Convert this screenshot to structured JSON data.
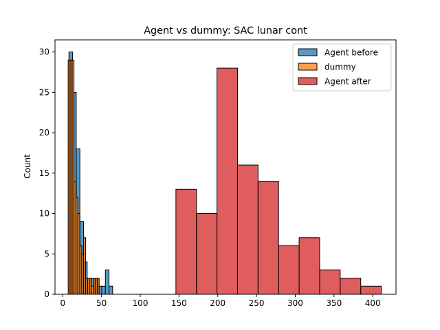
{
  "chart_data": {
    "type": "bar",
    "title": "Agent vs dummy: SAC lunar cont",
    "xlabel": "",
    "ylabel": "Count",
    "xlim": [
      -10,
      430
    ],
    "ylim": [
      0,
      31.5
    ],
    "xticks": [
      0,
      50,
      100,
      150,
      200,
      250,
      300,
      350,
      400
    ],
    "yticks": [
      0,
      5,
      10,
      15,
      20,
      25,
      30
    ],
    "legend_position": "top-right",
    "grid": false,
    "series": [
      {
        "name": "Agent before",
        "color": "#1f77b4",
        "bins": [
          {
            "x0": 8.0,
            "x1": 12.7,
            "count": 30
          },
          {
            "x0": 12.7,
            "x1": 17.4,
            "count": 25
          },
          {
            "x0": 17.4,
            "x1": 22.1,
            "count": 18
          },
          {
            "x0": 22.1,
            "x1": 26.8,
            "count": 9
          },
          {
            "x0": 26.8,
            "x1": 31.5,
            "count": 4
          },
          {
            "x0": 31.5,
            "x1": 36.2,
            "count": 2
          },
          {
            "x0": 36.2,
            "x1": 40.9,
            "count": 2
          },
          {
            "x0": 40.9,
            "x1": 45.6,
            "count": 2
          },
          {
            "x0": 45.6,
            "x1": 50.3,
            "count": 1
          },
          {
            "x0": 50.3,
            "x1": 55.0,
            "count": 1
          },
          {
            "x0": 55.0,
            "x1": 59.7,
            "count": 3
          },
          {
            "x0": 59.7,
            "x1": 64.4,
            "count": 1
          }
        ]
      },
      {
        "name": "dummy",
        "color": "#ff7f0e",
        "bins": [
          {
            "x0": 7.0,
            "x1": 9.5,
            "count": 29
          },
          {
            "x0": 9.5,
            "x1": 12.0,
            "count": 29
          },
          {
            "x0": 12.0,
            "x1": 14.5,
            "count": 29
          },
          {
            "x0": 14.5,
            "x1": 17.0,
            "count": 14
          },
          {
            "x0": 17.0,
            "x1": 19.5,
            "count": 12
          },
          {
            "x0": 19.5,
            "x1": 22.0,
            "count": 10
          },
          {
            "x0": 22.0,
            "x1": 24.5,
            "count": 6
          },
          {
            "x0": 24.5,
            "x1": 27.0,
            "count": 5
          },
          {
            "x0": 27.0,
            "x1": 29.5,
            "count": 7
          },
          {
            "x0": 29.5,
            "x1": 32.0,
            "count": 2
          },
          {
            "x0": 32.0,
            "x1": 34.5,
            "count": 2
          },
          {
            "x0": 34.5,
            "x1": 37.0,
            "count": 2
          },
          {
            "x0": 37.0,
            "x1": 39.5,
            "count": 1
          },
          {
            "x0": 39.5,
            "x1": 42.0,
            "count": 2
          },
          {
            "x0": 42.0,
            "x1": 44.5,
            "count": 2
          },
          {
            "x0": 44.5,
            "x1": 47.0,
            "count": 2
          }
        ]
      },
      {
        "name": "Agent after",
        "color": "#d62728",
        "bins": [
          {
            "x0": 146.0,
            "x1": 172.5,
            "count": 13
          },
          {
            "x0": 172.5,
            "x1": 199.0,
            "count": 10
          },
          {
            "x0": 199.0,
            "x1": 225.5,
            "count": 28
          },
          {
            "x0": 225.5,
            "x1": 252.0,
            "count": 16
          },
          {
            "x0": 252.0,
            "x1": 278.5,
            "count": 14
          },
          {
            "x0": 278.5,
            "x1": 305.0,
            "count": 6
          },
          {
            "x0": 305.0,
            "x1": 331.5,
            "count": 7
          },
          {
            "x0": 331.5,
            "x1": 358.0,
            "count": 3
          },
          {
            "x0": 358.0,
            "x1": 384.5,
            "count": 2
          },
          {
            "x0": 384.5,
            "x1": 411.0,
            "count": 1
          }
        ]
      }
    ]
  }
}
